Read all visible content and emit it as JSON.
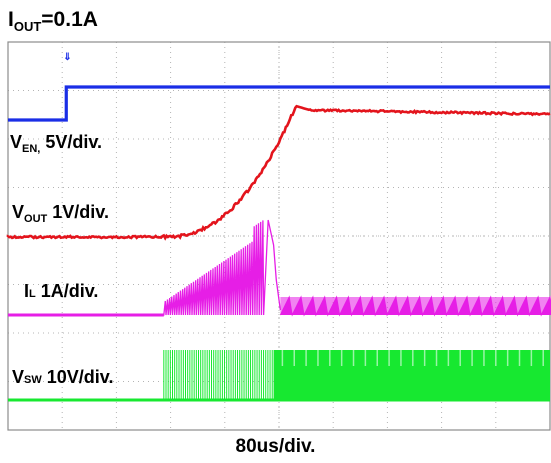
{
  "title": {
    "main": "I",
    "sub": "OUT",
    "rest": "=0.1A"
  },
  "xlabel": "80us/div.",
  "colors": {
    "ven": "#1a2ee6",
    "vout": "#e3141c",
    "il": "#e61ee6",
    "vsw": "#17e830",
    "grid": "#b4b4b4",
    "frame": "#8c8c8c"
  },
  "chart_data": {
    "type": "line",
    "title": "IOUT=0.1A",
    "xlabel": "80us/div.",
    "ylabel": "",
    "grid": true,
    "xlim": [
      0,
      800
    ],
    "x_unit": "us",
    "series": [
      {
        "name": "VEN",
        "scale": "5V/div.",
        "x": [
          0,
          86,
          86,
          800
        ],
        "values": [
          0,
          0,
          5,
          5
        ]
      },
      {
        "name": "VOUT",
        "scale": "1V/div.",
        "x": [
          0,
          230,
          260,
          290,
          320,
          350,
          380,
          410,
          425,
          440,
          800
        ],
        "values": [
          0,
          0,
          0.08,
          0.28,
          0.6,
          1.05,
          1.7,
          2.8,
          3.4,
          3.35,
          3.3
        ]
      },
      {
        "name": "IL",
        "scale": "1A/div.",
        "x": [
          0,
          230,
          350,
          440,
          440,
          800
        ],
        "values": [
          0,
          0,
          1.4,
          2.1,
          0,
          0.3
        ]
      },
      {
        "name": "VSW",
        "scale": "10V/div.",
        "x": [
          0,
          230,
          230,
          800
        ],
        "values": [
          0,
          0,
          12,
          12
        ]
      }
    ],
    "labels": [
      {
        "main": "V",
        "sub": "EN,",
        "rest": " 5V/div."
      },
      {
        "main": "V",
        "sub": "OUT",
        "rest": "  1V/div."
      },
      {
        "main": "I",
        "sub": "L",
        "rest": " 1A/div."
      },
      {
        "main": "V",
        "sub": "SW",
        "rest": " 10V/div."
      }
    ]
  }
}
